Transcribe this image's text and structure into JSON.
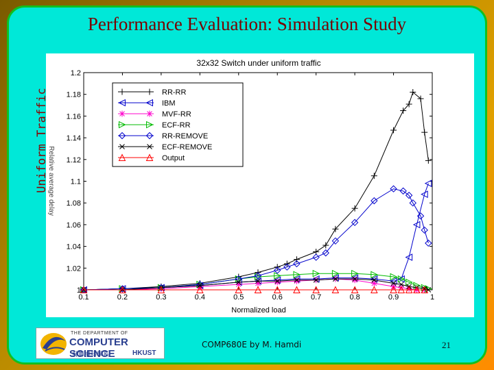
{
  "slide": {
    "title": "Performance Evaluation: Simulation Study",
    "side_label": "Uniform Traffic",
    "footer": "COMP680E by M. Hamdi",
    "page_number": "21",
    "logo": {
      "top": "THE DEPARTMENT OF",
      "main": "COMPUTER SCIENCE",
      "sub_left": "計算機科學系",
      "sub_right": "HKUST"
    }
  },
  "chart_data": {
    "type": "line",
    "title": "32x32 Switch under uniform traffic",
    "xlabel": "Normalized load",
    "ylabel": "Relative average delay",
    "xlim": [
      0.1,
      1.0
    ],
    "ylim": [
      1.0,
      1.2
    ],
    "xticks": [
      "0.1",
      "0.2",
      "0.3",
      "0.4",
      "0.5",
      "0.6",
      "0.7",
      "0.8",
      "0.9",
      "1"
    ],
    "yticks": [
      "1",
      "1.02",
      "1.04",
      "1.06",
      "1.08",
      "1.1",
      "1.12",
      "1.14",
      "1.16",
      "1.18",
      "1.2"
    ],
    "legend_position": "top-left",
    "series": [
      {
        "name": "RR-RR",
        "color": "#000000",
        "marker": "plus",
        "x": [
          0.1,
          0.2,
          0.3,
          0.4,
          0.5,
          0.55,
          0.6,
          0.625,
          0.65,
          0.7,
          0.725,
          0.75,
          0.8,
          0.85,
          0.9,
          0.925,
          0.94,
          0.95,
          0.97,
          0.98,
          0.99
        ],
        "y": [
          1.0,
          1.001,
          1.003,
          1.006,
          1.012,
          1.016,
          1.021,
          1.024,
          1.028,
          1.035,
          1.041,
          1.056,
          1.075,
          1.105,
          1.147,
          1.165,
          1.171,
          1.182,
          1.176,
          1.145,
          1.119
        ]
      },
      {
        "name": "IBM",
        "color": "#0000cc",
        "marker": "triangle-left",
        "x": [
          0.1,
          0.2,
          0.3,
          0.4,
          0.5,
          0.55,
          0.6,
          0.65,
          0.7,
          0.75,
          0.8,
          0.85,
          0.9,
          0.92,
          0.94,
          0.96,
          0.98,
          0.99
        ],
        "y": [
          1.0,
          1.001,
          1.002,
          1.004,
          1.007,
          1.008,
          1.009,
          1.01,
          1.01,
          1.011,
          1.011,
          1.01,
          1.008,
          1.01,
          1.03,
          1.06,
          1.088,
          1.098
        ]
      },
      {
        "name": "MVF-RR",
        "color": "#ff00cc",
        "marker": "asterisk",
        "x": [
          0.1,
          0.2,
          0.3,
          0.4,
          0.5,
          0.55,
          0.6,
          0.65,
          0.7,
          0.75,
          0.8,
          0.85,
          0.9,
          0.92,
          0.94,
          0.96,
          0.98
        ],
        "y": [
          1.0,
          1.0,
          1.001,
          1.003,
          1.005,
          1.006,
          1.007,
          1.008,
          1.009,
          1.01,
          1.009,
          1.006,
          1.003,
          1.002,
          1.001,
          1.0,
          1.0
        ]
      },
      {
        "name": "ECF-RR",
        "color": "#00bb00",
        "marker": "triangle-right",
        "x": [
          0.1,
          0.2,
          0.3,
          0.4,
          0.5,
          0.55,
          0.6,
          0.65,
          0.7,
          0.75,
          0.8,
          0.85,
          0.9,
          0.92,
          0.94,
          0.96,
          0.98,
          0.99
        ],
        "y": [
          1.0,
          1.001,
          1.002,
          1.005,
          1.01,
          1.012,
          1.013,
          1.014,
          1.015,
          1.015,
          1.015,
          1.014,
          1.012,
          1.01,
          1.007,
          1.004,
          1.002,
          1.001
        ]
      },
      {
        "name": "RR-REMOVE",
        "color": "#0000cc",
        "marker": "diamond",
        "x": [
          0.1,
          0.2,
          0.3,
          0.4,
          0.5,
          0.55,
          0.6,
          0.625,
          0.65,
          0.7,
          0.725,
          0.75,
          0.8,
          0.85,
          0.9,
          0.925,
          0.94,
          0.95,
          0.97,
          0.98,
          0.99
        ],
        "y": [
          1.0,
          1.001,
          1.002,
          1.005,
          1.01,
          1.013,
          1.018,
          1.021,
          1.024,
          1.03,
          1.034,
          1.045,
          1.062,
          1.082,
          1.093,
          1.091,
          1.087,
          1.08,
          1.068,
          1.055,
          1.043
        ]
      },
      {
        "name": "ECF-REMOVE",
        "color": "#000000",
        "marker": "x",
        "x": [
          0.1,
          0.2,
          0.3,
          0.4,
          0.5,
          0.55,
          0.6,
          0.65,
          0.7,
          0.75,
          0.8,
          0.85,
          0.9,
          0.92,
          0.94,
          0.96,
          0.98,
          0.99
        ],
        "y": [
          1.0,
          1.0,
          1.002,
          1.004,
          1.007,
          1.008,
          1.008,
          1.009,
          1.009,
          1.01,
          1.01,
          1.009,
          1.006,
          1.005,
          1.003,
          1.002,
          1.001,
          1.0
        ]
      },
      {
        "name": "Output",
        "color": "#ff0000",
        "marker": "triangle-up",
        "x": [
          0.1,
          0.2,
          0.3,
          0.4,
          0.5,
          0.55,
          0.6,
          0.65,
          0.7,
          0.75,
          0.8,
          0.85,
          0.9,
          0.92,
          0.94,
          0.96,
          0.98
        ],
        "y": [
          1.0,
          1.0,
          1.0,
          1.0,
          1.0,
          1.0,
          1.0,
          1.0,
          1.0,
          1.0,
          1.0,
          1.0,
          1.0,
          1.0,
          1.0,
          1.0,
          1.0
        ]
      }
    ]
  }
}
